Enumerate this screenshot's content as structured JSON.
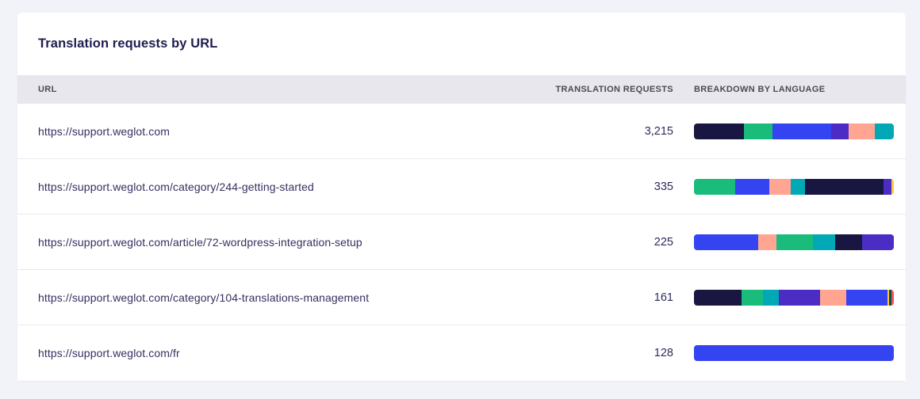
{
  "card": {
    "title": "Translation requests by URL"
  },
  "colors": {
    "navy": "#191641",
    "green": "#1abc7c",
    "blue": "#3444f1",
    "purple": "#4b2dc5",
    "salmon": "#ffa592",
    "teal": "#00a9b5",
    "yellow": "#ffc83d",
    "darkgreen": "#0e4749",
    "red": "#f2545b"
  },
  "table": {
    "columns": [
      "URL",
      "TRANSLATION REQUESTS",
      "BREAKDOWN BY LANGUAGE"
    ],
    "rows": [
      {
        "url": "https://support.weglot.com",
        "requests": "3,215",
        "breakdown": [
          {
            "color": "navy",
            "pct": 24.9
          },
          {
            "color": "green",
            "pct": 14.4
          },
          {
            "color": "blue",
            "pct": 29.3
          },
          {
            "color": "purple",
            "pct": 8.6
          },
          {
            "color": "salmon",
            "pct": 13.1
          },
          {
            "color": "teal",
            "pct": 9.7
          }
        ]
      },
      {
        "url": "https://support.weglot.com/category/244-getting-started",
        "requests": "335",
        "breakdown": [
          {
            "color": "green",
            "pct": 20.7
          },
          {
            "color": "blue",
            "pct": 17.0
          },
          {
            "color": "salmon",
            "pct": 10.6
          },
          {
            "color": "teal",
            "pct": 7.1
          },
          {
            "color": "navy",
            "pct": 39.3
          },
          {
            "color": "purple",
            "pct": 4.3
          },
          {
            "color": "yellow",
            "pct": 1.0
          }
        ]
      },
      {
        "url": "https://support.weglot.com/article/72-wordpress-integration-setup",
        "requests": "225",
        "breakdown": [
          {
            "color": "blue",
            "pct": 32.2
          },
          {
            "color": "salmon",
            "pct": 8.9
          },
          {
            "color": "green",
            "pct": 18.3
          },
          {
            "color": "teal",
            "pct": 11.2
          },
          {
            "color": "navy",
            "pct": 13.6
          },
          {
            "color": "purple",
            "pct": 15.8
          }
        ]
      },
      {
        "url": "https://support.weglot.com/category/104-translations-management",
        "requests": "161",
        "breakdown": [
          {
            "color": "navy",
            "pct": 23.8
          },
          {
            "color": "green",
            "pct": 10.6
          },
          {
            "color": "teal",
            "pct": 7.9
          },
          {
            "color": "purple",
            "pct": 20.7
          },
          {
            "color": "salmon",
            "pct": 13.2
          },
          {
            "color": "blue",
            "pct": 20.5
          },
          {
            "color": "yellow",
            "pct": 0.9
          },
          {
            "color": "darkgreen",
            "pct": 1.2
          },
          {
            "color": "red",
            "pct": 1.2
          }
        ]
      },
      {
        "url": "https://support.weglot.com/fr",
        "requests": "128",
        "breakdown": [
          {
            "color": "blue",
            "pct": 100
          }
        ]
      }
    ]
  },
  "chart_data": {
    "type": "table",
    "title": "Translation requests by URL",
    "columns": [
      "URL",
      "TRANSLATION REQUESTS",
      "BREAKDOWN BY LANGUAGE"
    ],
    "rows": [
      {
        "url": "https://support.weglot.com",
        "translation_requests": 3215
      },
      {
        "url": "https://support.weglot.com/category/244-getting-started",
        "translation_requests": 335
      },
      {
        "url": "https://support.weglot.com/article/72-wordpress-integration-setup",
        "translation_requests": 225
      },
      {
        "url": "https://support.weglot.com/category/104-translations-management",
        "translation_requests": 161
      },
      {
        "url": "https://support.weglot.com/fr",
        "translation_requests": 128
      }
    ]
  }
}
